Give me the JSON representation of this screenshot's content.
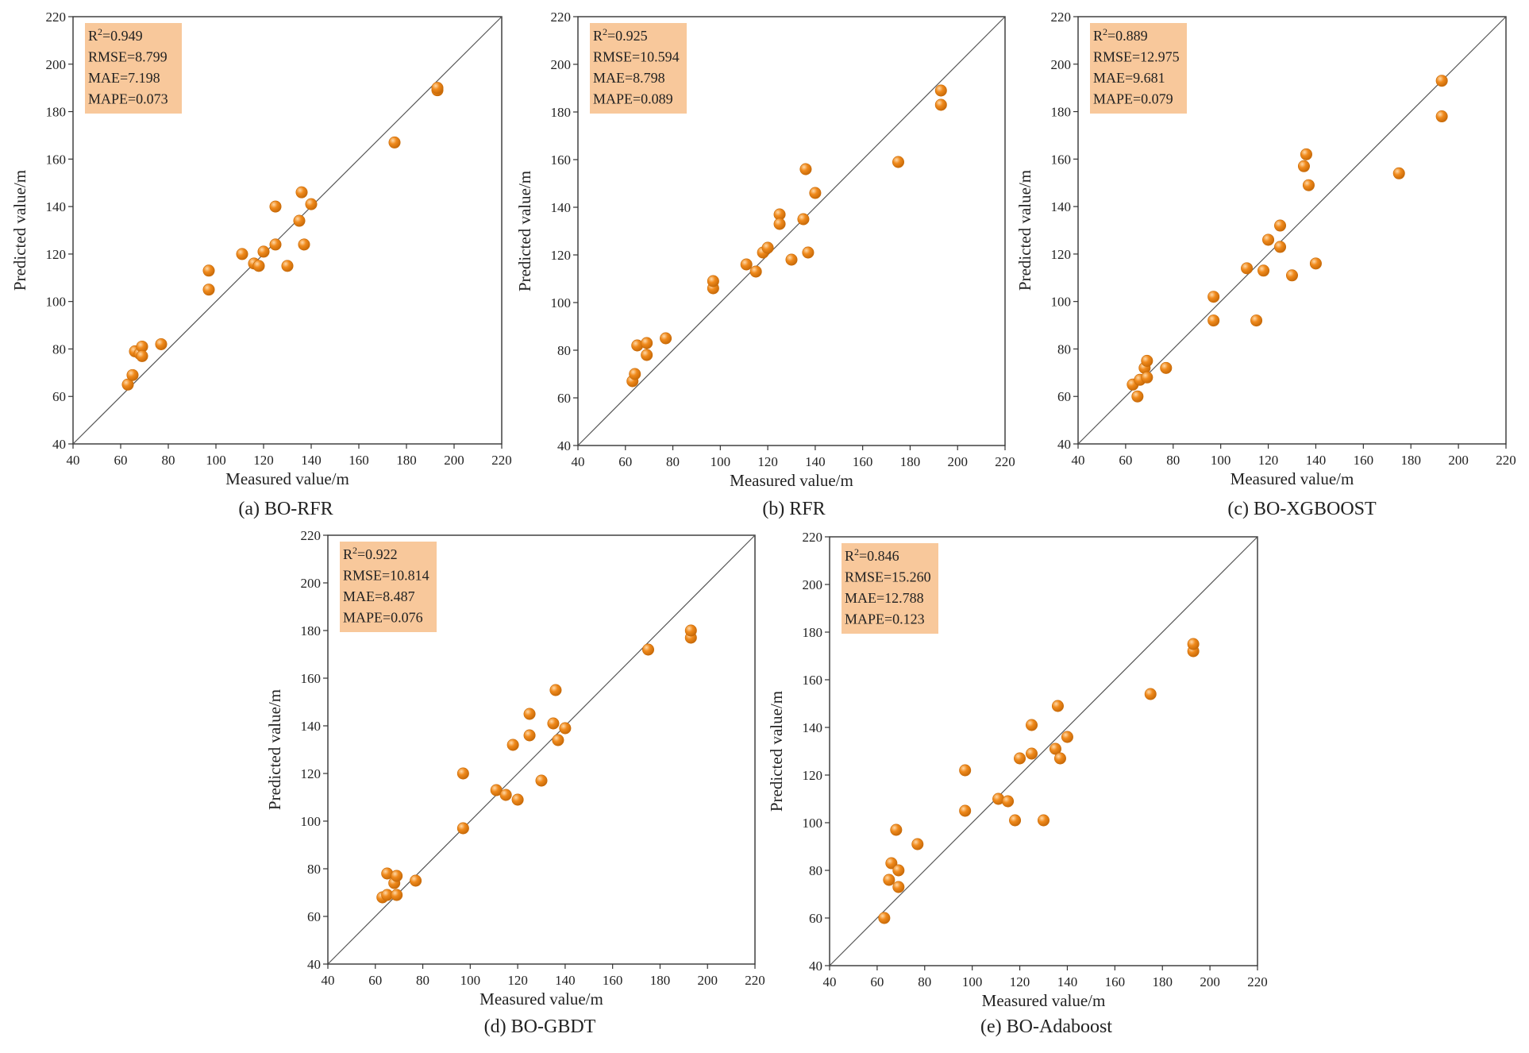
{
  "colors": {
    "point": "#f08a1c",
    "point_edge": "#c86a08",
    "point_highlight": "#ffd9a8",
    "stats_box": "#f8c89b",
    "axis": "#333333",
    "diagonal": "#555555"
  },
  "chart_data": [
    {
      "type": "scatter",
      "caption": "(a) BO-RFR",
      "xlabel": "Measured value/m",
      "ylabel": "Predicted value/m",
      "xlim": [
        40,
        220
      ],
      "ylim": [
        40,
        220
      ],
      "xticks": [
        40,
        60,
        80,
        100,
        120,
        140,
        160,
        180,
        200,
        220
      ],
      "yticks": [
        40,
        60,
        80,
        100,
        120,
        140,
        160,
        180,
        200,
        220
      ],
      "diagonal": "y=x",
      "stats": [
        {
          "label": "R",
          "sup": "2",
          "value": "=0.949"
        },
        {
          "label": "RMSE",
          "value": "=8.799"
        },
        {
          "label": "MAE",
          "value": "=7.198"
        },
        {
          "label": "MAPE",
          "value": "=0.073"
        }
      ],
      "points": [
        [
          63,
          65
        ],
        [
          65,
          69
        ],
        [
          66,
          79
        ],
        [
          68,
          78
        ],
        [
          69,
          81
        ],
        [
          69,
          77
        ],
        [
          77,
          82
        ],
        [
          97,
          105
        ],
        [
          97,
          113
        ],
        [
          111,
          120
        ],
        [
          116,
          116
        ],
        [
          118,
          115
        ],
        [
          120,
          121
        ],
        [
          125,
          124
        ],
        [
          125,
          140
        ],
        [
          130,
          115
        ],
        [
          135,
          134
        ],
        [
          136,
          146
        ],
        [
          137,
          124
        ],
        [
          140,
          141
        ],
        [
          175,
          167
        ],
        [
          193,
          189
        ],
        [
          193,
          190
        ]
      ]
    },
    {
      "type": "scatter",
      "caption": "(b) RFR",
      "xlabel": "Measured value/m",
      "ylabel": "Predicted value/m",
      "xlim": [
        40,
        220
      ],
      "ylim": [
        40,
        220
      ],
      "xticks": [
        40,
        60,
        80,
        100,
        120,
        140,
        160,
        180,
        200,
        220
      ],
      "yticks": [
        40,
        60,
        80,
        100,
        120,
        140,
        160,
        180,
        200,
        220
      ],
      "diagonal": "y=x",
      "stats": [
        {
          "label": "R",
          "sup": "2",
          "value": "=0.925"
        },
        {
          "label": "RMSE",
          "value": "=10.594"
        },
        {
          "label": "MAE",
          "value": "=8.798"
        },
        {
          "label": "MAPE",
          "value": "=0.089"
        }
      ],
      "points": [
        [
          63,
          67
        ],
        [
          64,
          70
        ],
        [
          65,
          82
        ],
        [
          69,
          83
        ],
        [
          69,
          78
        ],
        [
          77,
          85
        ],
        [
          97,
          106
        ],
        [
          97,
          109
        ],
        [
          111,
          116
        ],
        [
          115,
          113
        ],
        [
          118,
          121
        ],
        [
          120,
          123
        ],
        [
          125,
          137
        ],
        [
          125,
          133
        ],
        [
          130,
          118
        ],
        [
          135,
          135
        ],
        [
          136,
          156
        ],
        [
          137,
          121
        ],
        [
          140,
          146
        ],
        [
          175,
          159
        ],
        [
          193,
          189
        ],
        [
          193,
          183
        ]
      ]
    },
    {
      "type": "scatter",
      "caption": "(c) BO-XGBOOST",
      "xlabel": "Measured value/m",
      "ylabel": "Predicted value/m",
      "xlim": [
        40,
        220
      ],
      "ylim": [
        40,
        220
      ],
      "xticks": [
        40,
        60,
        80,
        100,
        120,
        140,
        160,
        180,
        200,
        220
      ],
      "yticks": [
        40,
        60,
        80,
        100,
        120,
        140,
        160,
        180,
        200,
        220
      ],
      "diagonal": "y=x",
      "stats": [
        {
          "label": "R",
          "sup": "2",
          "value": "=0.889"
        },
        {
          "label": "RMSE",
          "value": "=12.975"
        },
        {
          "label": "MAE",
          "value": "=9.681"
        },
        {
          "label": "MAPE",
          "value": "=0.079"
        }
      ],
      "points": [
        [
          63,
          65
        ],
        [
          65,
          60
        ],
        [
          66,
          67
        ],
        [
          68,
          72
        ],
        [
          69,
          75
        ],
        [
          69,
          68
        ],
        [
          77,
          72
        ],
        [
          97,
          102
        ],
        [
          97,
          92
        ],
        [
          111,
          114
        ],
        [
          115,
          92
        ],
        [
          118,
          113
        ],
        [
          120,
          126
        ],
        [
          125,
          132
        ],
        [
          125,
          123
        ],
        [
          130,
          111
        ],
        [
          135,
          157
        ],
        [
          136,
          162
        ],
        [
          137,
          149
        ],
        [
          140,
          116
        ],
        [
          175,
          154
        ],
        [
          193,
          193
        ],
        [
          193,
          178
        ]
      ]
    },
    {
      "type": "scatter",
      "caption": "(d) BO-GBDT",
      "xlabel": "Measured value/m",
      "ylabel": "Predicted value/m",
      "xlim": [
        40,
        220
      ],
      "ylim": [
        40,
        220
      ],
      "xticks": [
        40,
        60,
        80,
        100,
        120,
        140,
        160,
        180,
        200,
        220
      ],
      "yticks": [
        40,
        60,
        80,
        100,
        120,
        140,
        160,
        180,
        200,
        220
      ],
      "diagonal": "y=x",
      "stats": [
        {
          "label": "R",
          "sup": "2",
          "value": "=0.922"
        },
        {
          "label": "RMSE",
          "value": "=10.814"
        },
        {
          "label": "MAE",
          "value": "=8.487"
        },
        {
          "label": "MAPE",
          "value": "=0.076"
        }
      ],
      "points": [
        [
          63,
          68
        ],
        [
          65,
          69
        ],
        [
          65,
          78
        ],
        [
          68,
          74
        ],
        [
          69,
          77
        ],
        [
          69,
          69
        ],
        [
          77,
          75
        ],
        [
          97,
          97
        ],
        [
          97,
          120
        ],
        [
          111,
          113
        ],
        [
          115,
          111
        ],
        [
          118,
          132
        ],
        [
          120,
          109
        ],
        [
          125,
          145
        ],
        [
          125,
          136
        ],
        [
          130,
          117
        ],
        [
          135,
          141
        ],
        [
          136,
          155
        ],
        [
          137,
          134
        ],
        [
          140,
          139
        ],
        [
          175,
          172
        ],
        [
          193,
          177
        ],
        [
          193,
          180
        ]
      ]
    },
    {
      "type": "scatter",
      "caption": "(e) BO-Adaboost",
      "xlabel": "Measured value/m",
      "ylabel": "Predicted value/m",
      "xlim": [
        40,
        220
      ],
      "ylim": [
        40,
        220
      ],
      "xticks": [
        40,
        60,
        80,
        100,
        120,
        140,
        160,
        180,
        200,
        220
      ],
      "yticks": [
        40,
        60,
        80,
        100,
        120,
        140,
        160,
        180,
        200,
        220
      ],
      "diagonal": "y=x",
      "stats": [
        {
          "label": "R",
          "sup": "2",
          "value": "=0.846"
        },
        {
          "label": "RMSE",
          "value": "=15.260"
        },
        {
          "label": "MAE",
          "value": "=12.788"
        },
        {
          "label": "MAPE",
          "value": "=0.123"
        }
      ],
      "points": [
        [
          63,
          60
        ],
        [
          65,
          76
        ],
        [
          66,
          83
        ],
        [
          68,
          97
        ],
        [
          69,
          80
        ],
        [
          69,
          73
        ],
        [
          77,
          91
        ],
        [
          97,
          122
        ],
        [
          97,
          105
        ],
        [
          111,
          110
        ],
        [
          115,
          109
        ],
        [
          118,
          101
        ],
        [
          120,
          127
        ],
        [
          125,
          129
        ],
        [
          125,
          141
        ],
        [
          130,
          101
        ],
        [
          135,
          131
        ],
        [
          136,
          149
        ],
        [
          137,
          127
        ],
        [
          140,
          136
        ],
        [
          175,
          154
        ],
        [
          193,
          172
        ],
        [
          193,
          175
        ]
      ]
    }
  ]
}
